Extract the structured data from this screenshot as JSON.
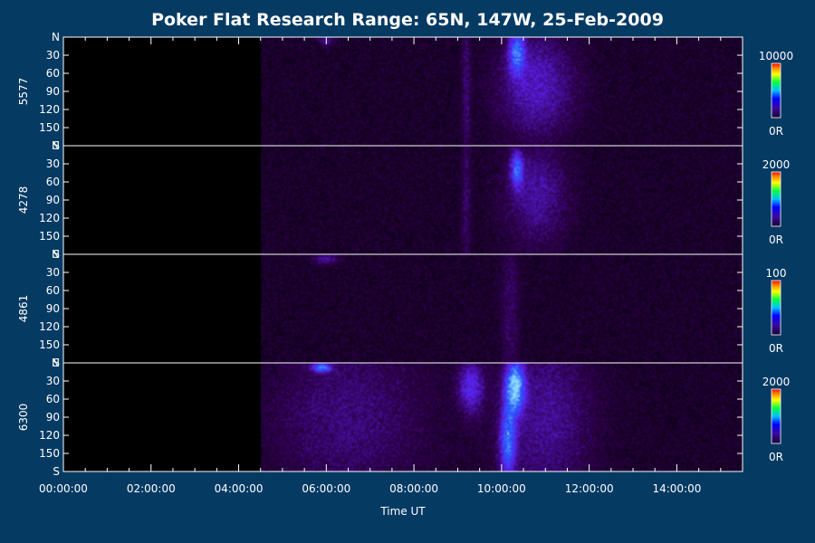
{
  "chart_data": {
    "type": "heatmap",
    "title": "Poker Flat Research Range: 65N, 147W, 25-Feb-2009",
    "xlabel": "Time UT",
    "x_ticks": [
      "00:00:00",
      "02:00:00",
      "04:00:00",
      "06:00:00",
      "08:00:00",
      "10:00:00",
      "12:00:00",
      "14:00:00"
    ],
    "xlim_hours": [
      0,
      15.5
    ],
    "y_ticks": [
      "N",
      "30",
      "60",
      "90",
      "120",
      "150",
      "S"
    ],
    "ylim": [
      0,
      180
    ],
    "data_start_hour": 4.5,
    "panels": [
      {
        "name": "5577",
        "colorbar": {
          "max": "10000",
          "min": "0R"
        },
        "features": [
          {
            "t": 10.35,
            "width": 0.25,
            "y": 25,
            "ywidth": 50,
            "intensity": 0.55
          },
          {
            "t": 10.8,
            "width": 1.2,
            "y": 80,
            "ywidth": 120,
            "intensity": 0.28
          },
          {
            "t": 6.0,
            "width": 0.25,
            "y": 5,
            "ywidth": 12,
            "intensity": 0.2
          },
          {
            "t": 9.2,
            "width": 0.15,
            "y": 90,
            "ywidth": 200,
            "intensity": 0.14
          }
        ]
      },
      {
        "name": "4278",
        "colorbar": {
          "max": "2000",
          "min": "0R"
        },
        "features": [
          {
            "t": 10.35,
            "width": 0.2,
            "y": 40,
            "ywidth": 40,
            "intensity": 0.5
          },
          {
            "t": 10.8,
            "width": 1.0,
            "y": 80,
            "ywidth": 120,
            "intensity": 0.22
          },
          {
            "t": 9.2,
            "width": 0.15,
            "y": 90,
            "ywidth": 200,
            "intensity": 0.12
          }
        ]
      },
      {
        "name": "4861",
        "colorbar": {
          "max": "100",
          "min": "0R"
        },
        "features": [
          {
            "t": 6.0,
            "width": 0.4,
            "y": 8,
            "ywidth": 12,
            "intensity": 0.22
          },
          {
            "t": 10.2,
            "width": 0.3,
            "y": 90,
            "ywidth": 200,
            "intensity": 0.12
          }
        ]
      },
      {
        "name": "6300",
        "colorbar": {
          "max": "2000",
          "min": "0R"
        },
        "features": [
          {
            "t": 10.3,
            "width": 0.3,
            "y": 40,
            "ywidth": 60,
            "intensity": 0.8
          },
          {
            "t": 10.15,
            "width": 0.25,
            "y": 130,
            "ywidth": 80,
            "intensity": 0.55
          },
          {
            "t": 5.9,
            "width": 0.3,
            "y": 8,
            "ywidth": 10,
            "intensity": 0.6
          },
          {
            "t": 9.3,
            "width": 0.4,
            "y": 40,
            "ywidth": 60,
            "intensity": 0.35
          },
          {
            "t": 11.0,
            "width": 1.5,
            "y": 90,
            "ywidth": 200,
            "intensity": 0.2
          },
          {
            "t": 6.5,
            "width": 2.5,
            "y": 90,
            "ywidth": 200,
            "intensity": 0.16
          }
        ]
      }
    ]
  }
}
